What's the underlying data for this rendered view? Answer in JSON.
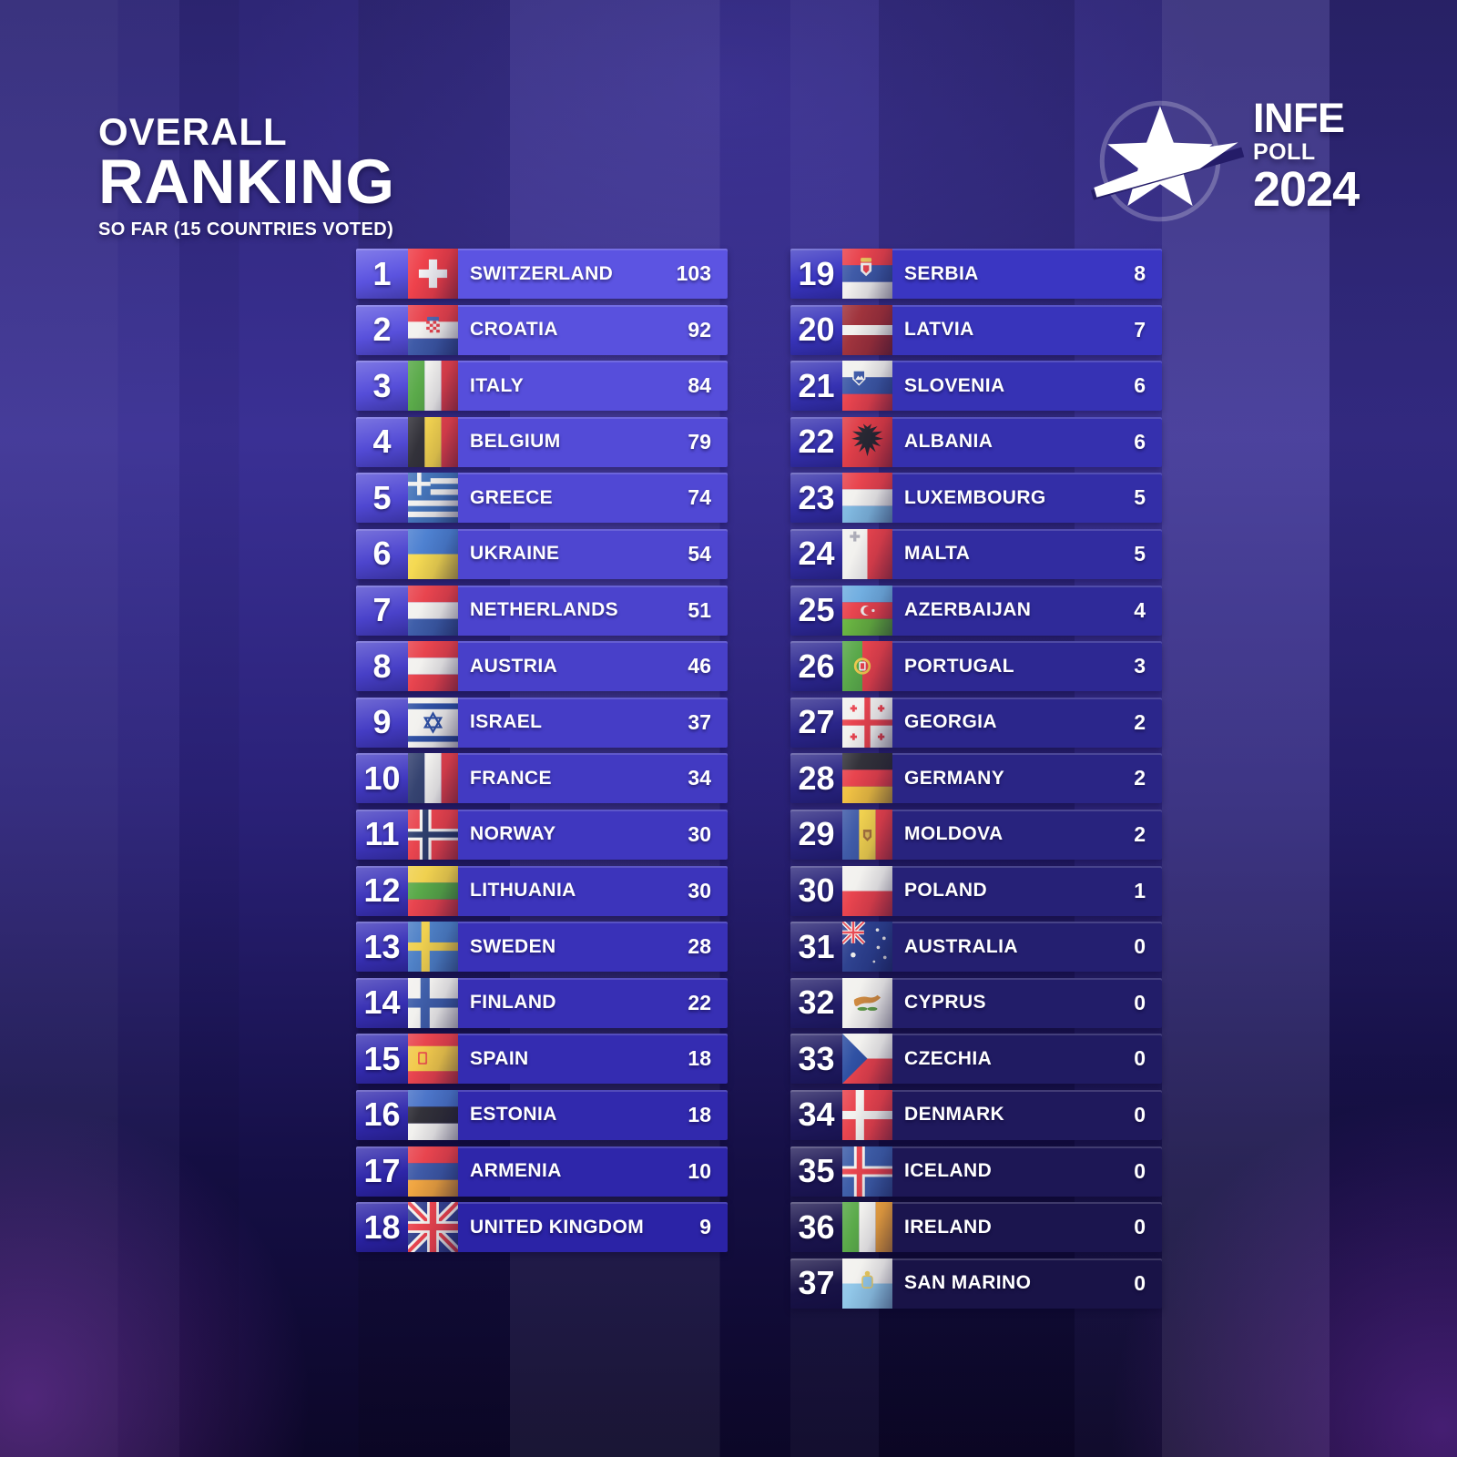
{
  "title": {
    "line1": "OVERALL",
    "line2": "RANKING",
    "subtitle": "SO FAR (15 COUNTRIES VOTED)"
  },
  "logo": {
    "name": "INFE",
    "sub": "POLL",
    "year": "2024",
    "star_icon": "star-swoosh-icon"
  },
  "ranking": {
    "colors": {
      "left_top": "#5C54E2",
      "left_bottom": "#2B23A6",
      "right_top": "#3A36C2",
      "right_bottom": "#191347",
      "text": "#FFFFFF"
    },
    "columns": [
      {
        "rows": [
          {
            "rank": 1,
            "country": "SWITZERLAND",
            "points": 103,
            "flag": "ch"
          },
          {
            "rank": 2,
            "country": "CROATIA",
            "points": 92,
            "flag": "hr"
          },
          {
            "rank": 3,
            "country": "ITALY",
            "points": 84,
            "flag": "it"
          },
          {
            "rank": 4,
            "country": "BELGIUM",
            "points": 79,
            "flag": "be"
          },
          {
            "rank": 5,
            "country": "GREECE",
            "points": 74,
            "flag": "gr"
          },
          {
            "rank": 6,
            "country": "UKRAINE",
            "points": 54,
            "flag": "ua"
          },
          {
            "rank": 7,
            "country": "NETHERLANDS",
            "points": 51,
            "flag": "nl"
          },
          {
            "rank": 8,
            "country": "AUSTRIA",
            "points": 46,
            "flag": "at"
          },
          {
            "rank": 9,
            "country": "ISRAEL",
            "points": 37,
            "flag": "il"
          },
          {
            "rank": 10,
            "country": "FRANCE",
            "points": 34,
            "flag": "fr"
          },
          {
            "rank": 11,
            "country": "NORWAY",
            "points": 30,
            "flag": "no"
          },
          {
            "rank": 12,
            "country": "LITHUANIA",
            "points": 30,
            "flag": "lt"
          },
          {
            "rank": 13,
            "country": "SWEDEN",
            "points": 28,
            "flag": "se"
          },
          {
            "rank": 14,
            "country": "FINLAND",
            "points": 22,
            "flag": "fi"
          },
          {
            "rank": 15,
            "country": "SPAIN",
            "points": 18,
            "flag": "es"
          },
          {
            "rank": 16,
            "country": "ESTONIA",
            "points": 18,
            "flag": "ee"
          },
          {
            "rank": 17,
            "country": "ARMENIA",
            "points": 10,
            "flag": "am"
          },
          {
            "rank": 18,
            "country": "UNITED KINGDOM",
            "points": 9,
            "flag": "gb"
          }
        ]
      },
      {
        "rows": [
          {
            "rank": 19,
            "country": "SERBIA",
            "points": 8,
            "flag": "rs"
          },
          {
            "rank": 20,
            "country": "LATVIA",
            "points": 7,
            "flag": "lv"
          },
          {
            "rank": 21,
            "country": "SLOVENIA",
            "points": 6,
            "flag": "si"
          },
          {
            "rank": 22,
            "country": "ALBANIA",
            "points": 6,
            "flag": "al"
          },
          {
            "rank": 23,
            "country": "LUXEMBOURG",
            "points": 5,
            "flag": "lu"
          },
          {
            "rank": 24,
            "country": "MALTA",
            "points": 5,
            "flag": "mt"
          },
          {
            "rank": 25,
            "country": "AZERBAIJAN",
            "points": 4,
            "flag": "az"
          },
          {
            "rank": 26,
            "country": "PORTUGAL",
            "points": 3,
            "flag": "pt"
          },
          {
            "rank": 27,
            "country": "GEORGIA",
            "points": 2,
            "flag": "ge"
          },
          {
            "rank": 28,
            "country": "GERMANY",
            "points": 2,
            "flag": "de"
          },
          {
            "rank": 29,
            "country": "MOLDOVA",
            "points": 2,
            "flag": "md"
          },
          {
            "rank": 30,
            "country": "POLAND",
            "points": 1,
            "flag": "pl"
          },
          {
            "rank": 31,
            "country": "AUSTRALIA",
            "points": 0,
            "flag": "au"
          },
          {
            "rank": 32,
            "country": "CYPRUS",
            "points": 0,
            "flag": "cy"
          },
          {
            "rank": 33,
            "country": "CZECHIA",
            "points": 0,
            "flag": "cz"
          },
          {
            "rank": 34,
            "country": "DENMARK",
            "points": 0,
            "flag": "dk"
          },
          {
            "rank": 35,
            "country": "ICELAND",
            "points": 0,
            "flag": "is"
          },
          {
            "rank": 36,
            "country": "IRELAND",
            "points": 0,
            "flag": "ie"
          },
          {
            "rank": 37,
            "country": "SAN MARINO",
            "points": 0,
            "flag": "sm"
          }
        ]
      }
    ]
  },
  "chart_data": {
    "type": "table",
    "title": "OVERALL RANKING",
    "subtitle": "SO FAR (15 COUNTRIES VOTED)",
    "columns": [
      "rank",
      "country",
      "points"
    ],
    "rows": [
      [
        1,
        "SWITZERLAND",
        103
      ],
      [
        2,
        "CROATIA",
        92
      ],
      [
        3,
        "ITALY",
        84
      ],
      [
        4,
        "BELGIUM",
        79
      ],
      [
        5,
        "GREECE",
        74
      ],
      [
        6,
        "UKRAINE",
        54
      ],
      [
        7,
        "NETHERLANDS",
        51
      ],
      [
        8,
        "AUSTRIA",
        46
      ],
      [
        9,
        "ISRAEL",
        37
      ],
      [
        10,
        "FRANCE",
        34
      ],
      [
        11,
        "NORWAY",
        30
      ],
      [
        12,
        "LITHUANIA",
        30
      ],
      [
        13,
        "SWEDEN",
        28
      ],
      [
        14,
        "FINLAND",
        22
      ],
      [
        15,
        "SPAIN",
        18
      ],
      [
        16,
        "ESTONIA",
        18
      ],
      [
        17,
        "ARMENIA",
        10
      ],
      [
        18,
        "UNITED KINGDOM",
        9
      ],
      [
        19,
        "SERBIA",
        8
      ],
      [
        20,
        "LATVIA",
        7
      ],
      [
        21,
        "SLOVENIA",
        6
      ],
      [
        22,
        "ALBANIA",
        6
      ],
      [
        23,
        "LUXEMBOURG",
        5
      ],
      [
        24,
        "MALTA",
        5
      ],
      [
        25,
        "AZERBAIJAN",
        4
      ],
      [
        26,
        "PORTUGAL",
        3
      ],
      [
        27,
        "GEORGIA",
        2
      ],
      [
        28,
        "GERMANY",
        2
      ],
      [
        29,
        "MOLDOVA",
        2
      ],
      [
        30,
        "POLAND",
        1
      ],
      [
        31,
        "AUSTRALIA",
        0
      ],
      [
        32,
        "CYPRUS",
        0
      ],
      [
        33,
        "CZECHIA",
        0
      ],
      [
        34,
        "DENMARK",
        0
      ],
      [
        35,
        "ICELAND",
        0
      ],
      [
        36,
        "IRELAND",
        0
      ],
      [
        37,
        "SAN MARINO",
        0
      ]
    ]
  }
}
